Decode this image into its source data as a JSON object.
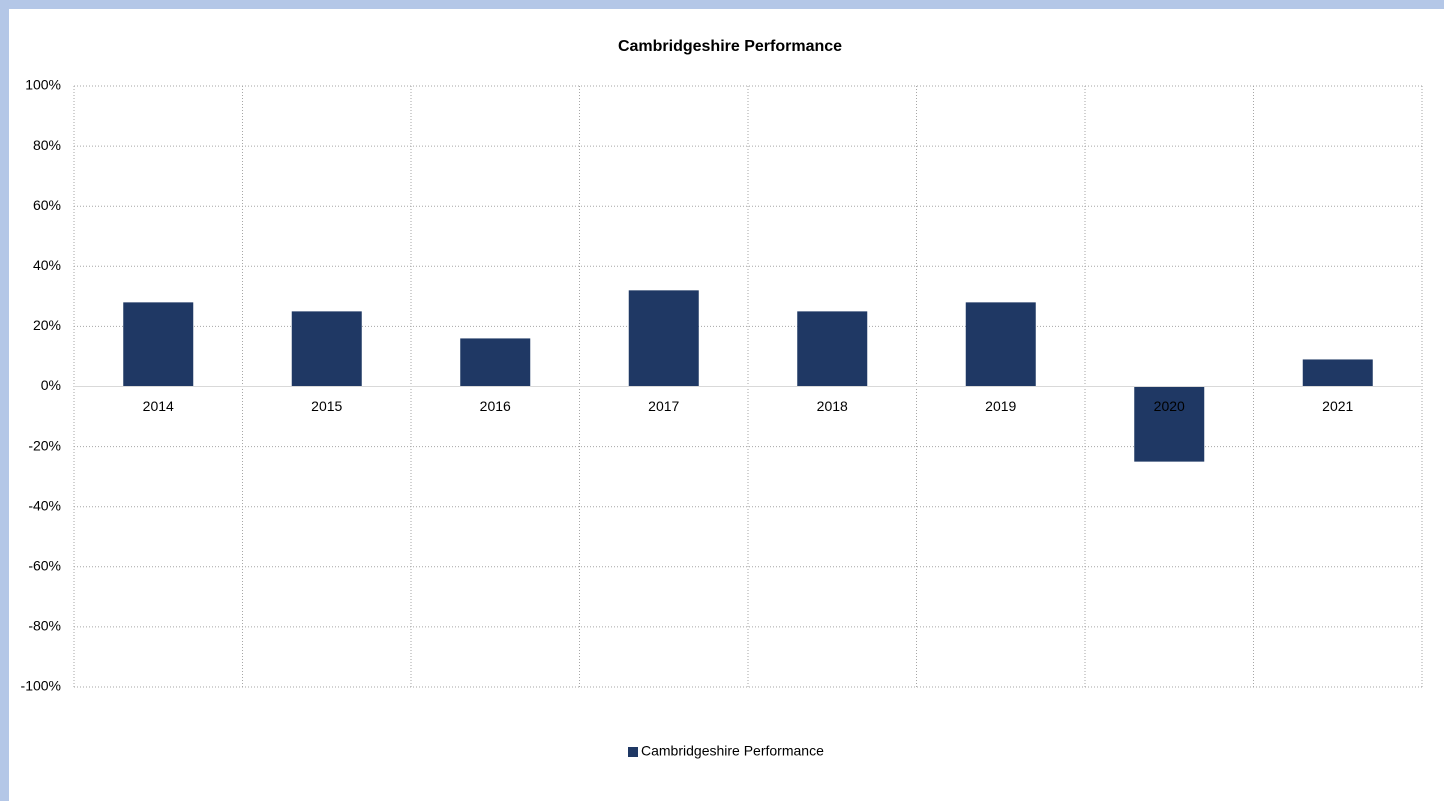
{
  "chart_data": {
    "type": "bar",
    "title": "Cambridgeshire Performance",
    "categories": [
      "2014",
      "2015",
      "2016",
      "2017",
      "2018",
      "2019",
      "2020",
      "2021"
    ],
    "series": [
      {
        "name": "Cambridgeshire Performance",
        "color": "#1f3864",
        "values": [
          28,
          25,
          16,
          32,
          25,
          28,
          -25,
          9
        ]
      }
    ],
    "ylim": [
      -100,
      100
    ],
    "yticks": [
      {
        "value": -100,
        "label": "-100%"
      },
      {
        "value": -80,
        "label": "-80%"
      },
      {
        "value": -60,
        "label": "-60%"
      },
      {
        "value": -40,
        "label": "-40%"
      },
      {
        "value": -20,
        "label": "-20%"
      },
      {
        "value": 0,
        "label": "0%"
      },
      {
        "value": 20,
        "label": "20%"
      },
      {
        "value": 40,
        "label": "40%"
      },
      {
        "value": 60,
        "label": "60%"
      },
      {
        "value": 80,
        "label": "80%"
      },
      {
        "value": 100,
        "label": "100%"
      }
    ],
    "grid": true,
    "legend": "bottom"
  }
}
